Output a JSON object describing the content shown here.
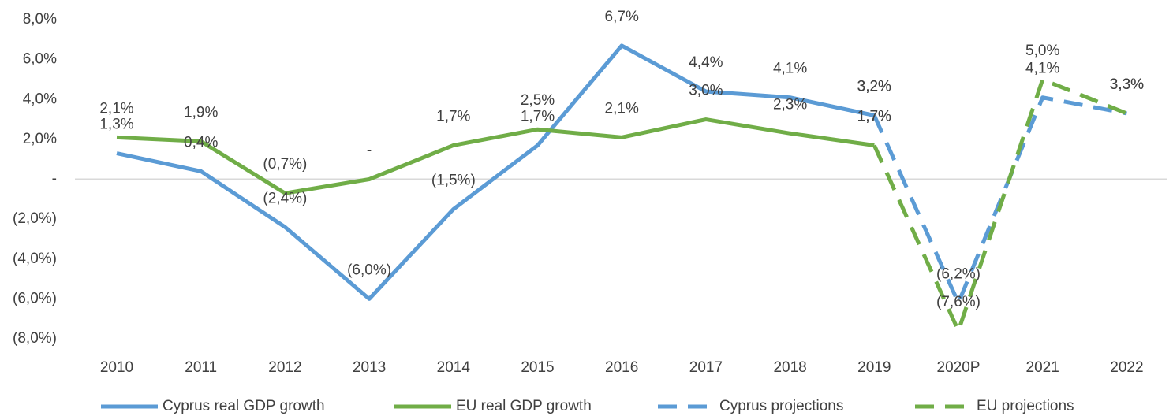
{
  "chart_data": {
    "type": "line",
    "categories": [
      "2010",
      "2011",
      "2012",
      "2013",
      "2014",
      "2015",
      "2016",
      "2017",
      "2018",
      "2019",
      "2020P",
      "2021",
      "2022"
    ],
    "ylim": [
      -8,
      8
    ],
    "yticks": [
      {
        "value": 8,
        "label": "8,0%"
      },
      {
        "value": 6,
        "label": "6,0%"
      },
      {
        "value": 4,
        "label": "4,0%"
      },
      {
        "value": 2,
        "label": "2,0%"
      },
      {
        "value": 0,
        "label": "-"
      },
      {
        "value": -2,
        "label": "(2,0%)"
      },
      {
        "value": -4,
        "label": "(4,0%)"
      },
      {
        "value": -6,
        "label": "(6,0%)"
      },
      {
        "value": -8,
        "label": "(8,0%)"
      }
    ],
    "grid": false,
    "legend": "bottom",
    "series": [
      {
        "name": "Cyprus real GDP growth",
        "color": "#5b9bd5",
        "style": "solid",
        "values": [
          1.3,
          0.4,
          -2.4,
          -6.0,
          -1.5,
          1.7,
          6.7,
          4.4,
          4.1,
          3.2,
          null,
          null,
          null
        ],
        "value_labels": [
          "1,3%",
          "0,4%",
          "(2,4%)",
          "(6,0%)",
          "(1,5%)",
          "1,7%",
          "6,7%",
          "4,4%",
          "4,1%",
          "3,2%",
          null,
          null,
          null
        ]
      },
      {
        "name": "EU real GDP growth",
        "color": "#70ad47",
        "style": "solid",
        "values": [
          2.1,
          1.9,
          -0.7,
          0,
          1.7,
          2.5,
          2.1,
          3.0,
          2.3,
          1.7,
          null,
          null,
          null
        ],
        "value_labels": [
          "2,1%",
          "1,9%",
          "(0,7%)",
          "-",
          "1,7%",
          "2,5%",
          "2,1%",
          "3,0%",
          "2,3%",
          "1,7%",
          null,
          null,
          null
        ]
      },
      {
        "name": "Cyprus projections",
        "color": "#5b9bd5",
        "style": "dashed",
        "values": [
          null,
          null,
          null,
          null,
          null,
          null,
          null,
          null,
          null,
          3.2,
          -6.2,
          4.1,
          3.3
        ],
        "value_labels": [
          null,
          null,
          null,
          null,
          null,
          null,
          null,
          null,
          null,
          "3,2%",
          "(6,2%)",
          "4,1%",
          "3,3%"
        ]
      },
      {
        "name": "EU projections",
        "color": "#70ad47",
        "style": "dashed",
        "values": [
          null,
          null,
          null,
          null,
          null,
          null,
          null,
          null,
          null,
          1.7,
          -7.6,
          5.0,
          3.3
        ],
        "value_labels": [
          null,
          null,
          null,
          null,
          null,
          null,
          null,
          null,
          null,
          "1,7%",
          "(7,6%)",
          "5,0%",
          "3,3%"
        ]
      }
    ]
  }
}
